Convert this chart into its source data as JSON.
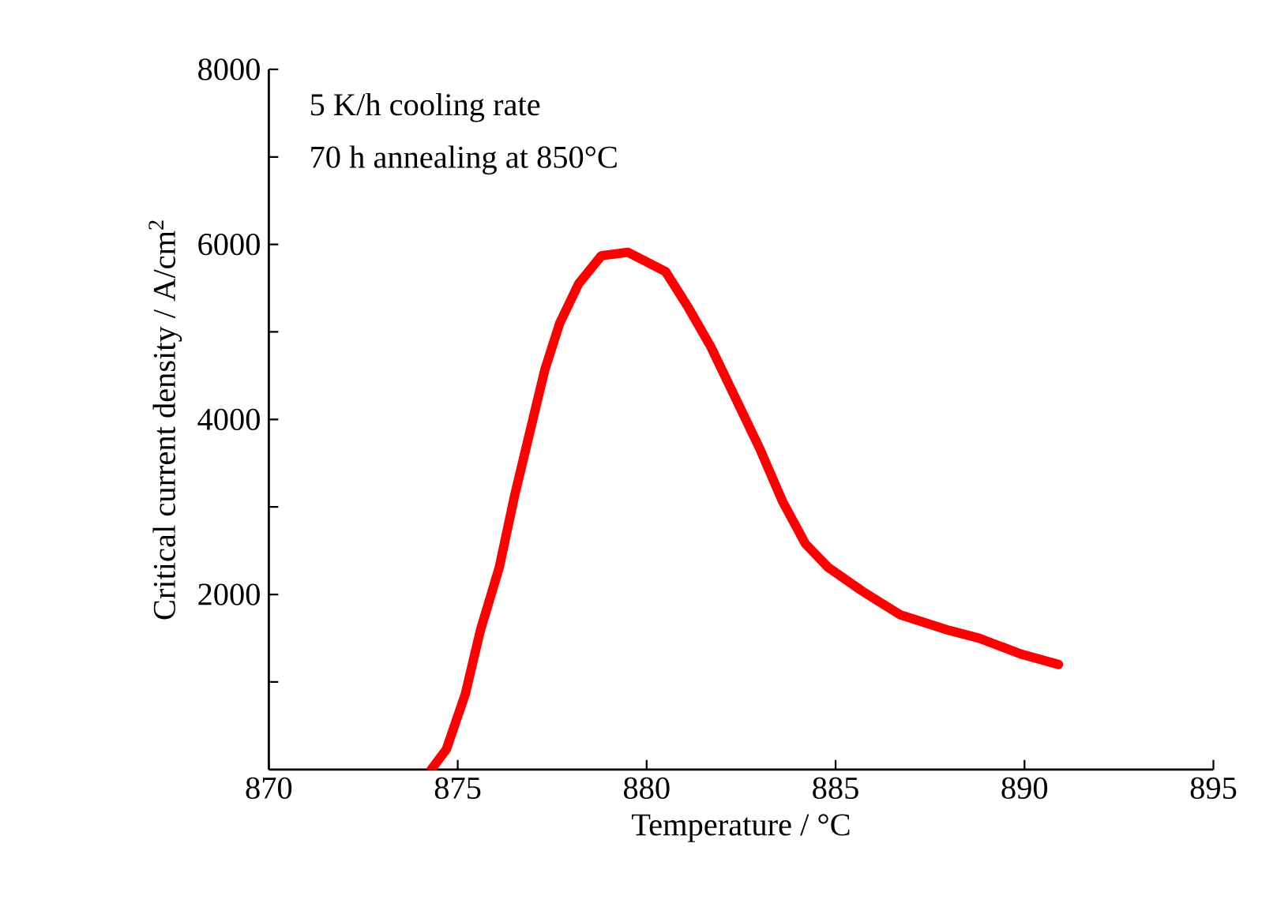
{
  "chart_data": {
    "type": "line",
    "xlabel": "Temperature / °C",
    "ylabel": "Critical current density / A/cm$^{2}$",
    "annotations": [
      "5 K/h cooling rate",
      "70 h annealing at 850°C"
    ],
    "x": [
      874.3,
      874.7,
      875.2,
      875.6,
      876.1,
      876.5,
      876.9,
      877.3,
      877.7,
      878.2,
      878.8,
      879.5,
      880.5,
      881.1,
      881.7,
      882.3,
      883.0,
      883.6,
      884.2,
      884.8,
      885.7,
      886.7,
      888.0,
      888.8,
      889.9,
      890.9
    ],
    "series": [
      {
        "color": "#ff0000",
        "values": [
          0,
          230,
          860,
          1590,
          2310,
          3120,
          3840,
          4560,
          5100,
          5550,
          5870,
          5910,
          5690,
          5280,
          4830,
          4290,
          3660,
          3060,
          2580,
          2310,
          2040,
          1770,
          1590,
          1500,
          1320,
          1200
        ]
      }
    ],
    "xlim": [
      870,
      895
    ],
    "xticks": [
      870,
      875,
      880,
      885,
      890,
      895
    ],
    "ylim": [
      0,
      8000
    ],
    "yticks": [
      {
        "value": 1000,
        "label": null
      },
      2000,
      {
        "value": 3000,
        "label": null
      },
      4000,
      {
        "value": 5000,
        "label": null
      },
      6000,
      {
        "value": 7000,
        "label": null
      },
      8000
    ],
    "grid": false,
    "marker": "none",
    "line_style": "solid"
  }
}
